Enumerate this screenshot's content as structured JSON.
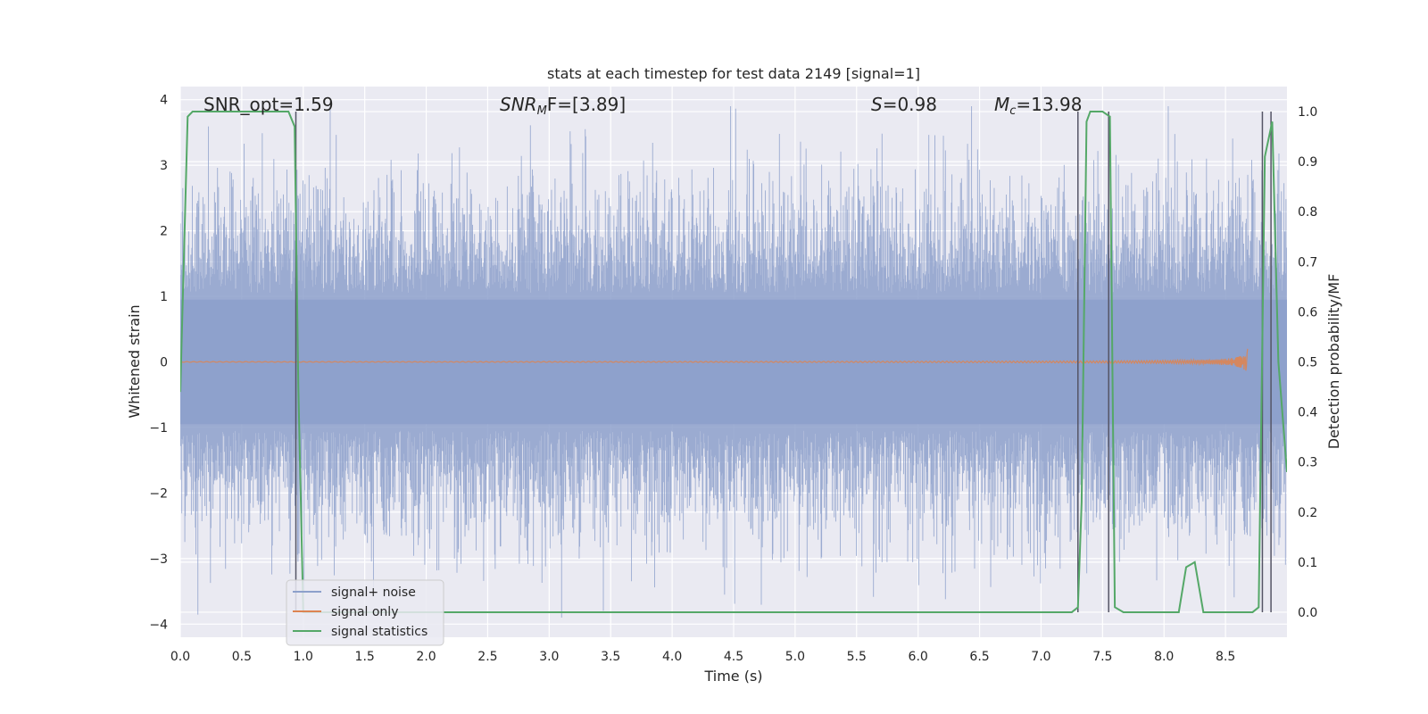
{
  "chart_data": {
    "type": "line",
    "title": "stats at each timestep for test data 2149 [signal=1]",
    "xlabel": "Time (s)",
    "ylabel": "Whitened strain",
    "y2label": "Detection probability/MF",
    "xlim": [
      0.0,
      9.0
    ],
    "ylim": [
      -4.2,
      4.2
    ],
    "y2lim": [
      -0.05,
      1.05
    ],
    "x_ticks": [
      0.0,
      0.5,
      1.0,
      1.5,
      2.0,
      2.5,
      3.0,
      3.5,
      4.0,
      4.5,
      5.0,
      5.5,
      6.0,
      6.5,
      7.0,
      7.5,
      8.0,
      8.5
    ],
    "x_tick_labels": [
      "0.0",
      "0.5",
      "1.0",
      "1.5",
      "2.0",
      "2.5",
      "3.0",
      "3.5",
      "4.0",
      "4.5",
      "5.0",
      "5.5",
      "6.0",
      "6.5",
      "7.0",
      "7.5",
      "8.0",
      "8.5"
    ],
    "y_ticks": [
      -4,
      -3,
      -2,
      -1,
      0,
      1,
      2,
      3,
      4
    ],
    "y_tick_labels": [
      "−4",
      "−3",
      "−2",
      "−1",
      "0",
      "1",
      "2",
      "3",
      "4"
    ],
    "y2_ticks": [
      0.0,
      0.1,
      0.2,
      0.3,
      0.4,
      0.5,
      0.6,
      0.7,
      0.8,
      0.9,
      1.0
    ],
    "y2_tick_labels": [
      "0.0",
      "0.1",
      "0.2",
      "0.3",
      "0.4",
      "0.5",
      "0.6",
      "0.7",
      "0.8",
      "0.9",
      "1.0"
    ],
    "grid": true,
    "legend_position": "lower-left",
    "annotations": {
      "snr_opt": "SNR_opt=1.59",
      "snr_mf_base": "SNR",
      "snr_mf_sub": "M",
      "snr_mf_rest": "F=[3.89]",
      "s_base": "S",
      "s_rest": "=0.98",
      "mc_base": "M",
      "mc_sub": "c",
      "mc_rest": "=13.98"
    },
    "colors": {
      "background": "#eaeaf2",
      "grid": "#ffffff",
      "noise": "#8da0cb",
      "signal": "#dd8452",
      "statistics": "#55a868",
      "vline": "#555566"
    },
    "series": [
      {
        "name": "signal+ noise",
        "color": "#8da0cb",
        "kind": "noise-band",
        "typical_amplitude": 1.5,
        "max_abs": 3.9,
        "x_range": [
          0.0,
          9.0
        ]
      },
      {
        "name": "signal only",
        "color": "#dd8452",
        "kind": "chirp",
        "x_range": [
          0.0,
          8.68
        ],
        "peak_amplitude": 0.35,
        "end_x": 8.68
      },
      {
        "name": "signal statistics",
        "color": "#55a868",
        "axis": "y2",
        "x": [
          0.0,
          0.06,
          0.1,
          0.2,
          0.3,
          0.5,
          0.7,
          0.88,
          0.93,
          0.96,
          1.0,
          1.1,
          2.0,
          3.0,
          4.0,
          5.0,
          6.0,
          7.0,
          7.25,
          7.3,
          7.33,
          7.37,
          7.4,
          7.5,
          7.56,
          7.6,
          7.67,
          7.75,
          8.0,
          8.12,
          8.18,
          8.25,
          8.32,
          8.4,
          8.72,
          8.77,
          8.82,
          8.88,
          8.93,
          9.0
        ],
        "y": [
          0.44,
          0.99,
          1.0,
          1.0,
          1.0,
          1.0,
          1.0,
          1.0,
          0.97,
          0.45,
          0.0,
          0.0,
          0.0,
          0.0,
          0.0,
          0.0,
          0.0,
          0.0,
          0.0,
          0.01,
          0.22,
          0.98,
          1.0,
          1.0,
          0.99,
          0.01,
          0.0,
          0.0,
          0.0,
          0.0,
          0.09,
          0.1,
          0.0,
          0.0,
          0.0,
          0.01,
          0.91,
          0.98,
          0.5,
          0.28
        ]
      }
    ],
    "vlines_x": [
      0.94,
      7.3,
      7.55,
      8.8,
      8.87
    ]
  },
  "legend": {
    "items": [
      {
        "label": "signal+ noise",
        "color": "#8da0cb"
      },
      {
        "label": "signal only",
        "color": "#dd8452"
      },
      {
        "label": "signal statistics",
        "color": "#55a868"
      }
    ]
  }
}
